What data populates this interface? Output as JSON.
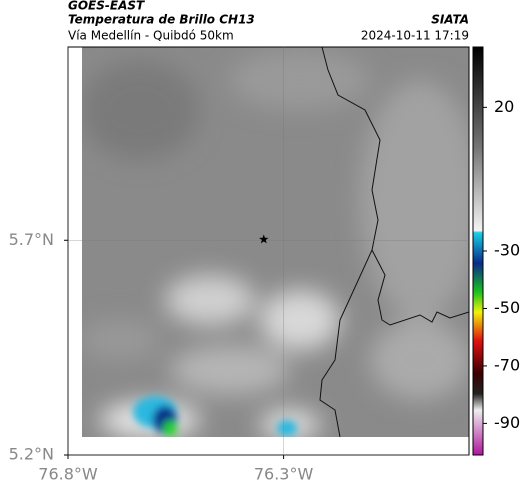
{
  "map": {
    "source": "GOES-EAST",
    "title": "Temperatura de Brillo CH13",
    "brand": "SIATA",
    "subtitle": "Vía Medellín - Quibdó 50km",
    "timestamp": "2024-10-11 17:19",
    "xlim": [
      -76.8,
      -75.87
    ],
    "ylim": [
      5.2,
      6.15
    ],
    "xticks": [
      {
        "value": -76.8,
        "label": "76.8°W"
      },
      {
        "value": -76.3,
        "label": "76.3°W"
      }
    ],
    "yticks": [
      {
        "value": 5.2,
        "label": "5.2°N"
      },
      {
        "value": 5.7,
        "label": "5.7°N"
      }
    ],
    "marker": {
      "lon": -76.346,
      "lat": 5.702
    },
    "colorbar": {
      "lim": [
        41,
        -101
      ],
      "ticks": [
        20,
        -30,
        -50,
        -70,
        -90
      ]
    }
  }
}
